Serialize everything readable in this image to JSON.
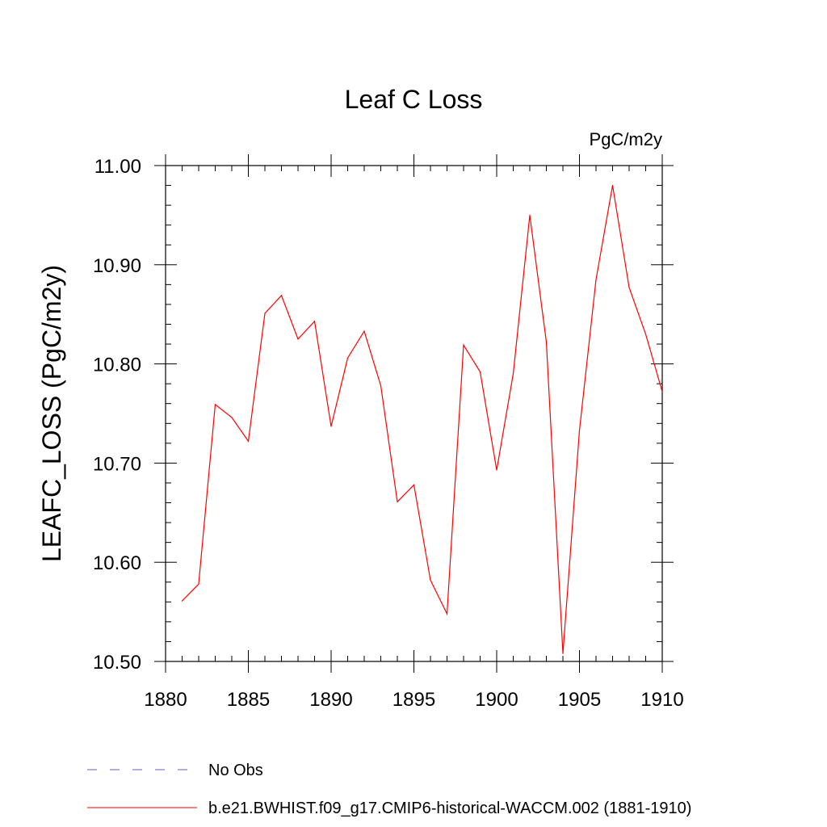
{
  "chart_data": {
    "type": "line",
    "title": "Leaf C Loss",
    "units_label": "PgC/m2y",
    "ylabel": "LEAFC_LOSS  (PgC/m2y)",
    "xlabel": "",
    "xlim": [
      1880,
      1910
    ],
    "ylim": [
      10.5,
      11.0
    ],
    "x_ticks": [
      1880,
      1885,
      1890,
      1895,
      1900,
      1905,
      1910
    ],
    "y_ticks": [
      "10.50",
      "10.60",
      "10.70",
      "10.80",
      "10.90",
      "11.00"
    ],
    "grid": false,
    "legend_position": "bottom-left",
    "series": [
      {
        "name": "b.e21.BWHIST.f09_g17.CMIP6-historical-WACCM.002 (1881-1910)",
        "color": "#ff0000",
        "style": "solid",
        "x": [
          1881,
          1882,
          1883,
          1884,
          1885,
          1886,
          1887,
          1888,
          1889,
          1890,
          1891,
          1892,
          1893,
          1894,
          1895,
          1896,
          1897,
          1898,
          1899,
          1900,
          1901,
          1902,
          1903,
          1904,
          1905,
          1906,
          1907,
          1908,
          1909,
          1910
        ],
        "y": [
          10.561,
          10.578,
          10.759,
          10.746,
          10.722,
          10.851,
          10.869,
          10.825,
          10.843,
          10.737,
          10.806,
          10.833,
          10.778,
          10.661,
          10.678,
          10.582,
          10.548,
          10.819,
          10.792,
          10.693,
          10.79,
          10.95,
          10.822,
          10.508,
          10.733,
          10.885,
          10.98,
          10.877,
          10.83,
          10.772
        ]
      }
    ],
    "legend": [
      {
        "label": "No Obs",
        "color": "#6a5acd",
        "style": "dashed"
      },
      {
        "label": "b.e21.BWHIST.f09_g17.CMIP6-historical-WACCM.002 (1881-1910)",
        "color": "#ff0000",
        "style": "solid"
      }
    ]
  }
}
